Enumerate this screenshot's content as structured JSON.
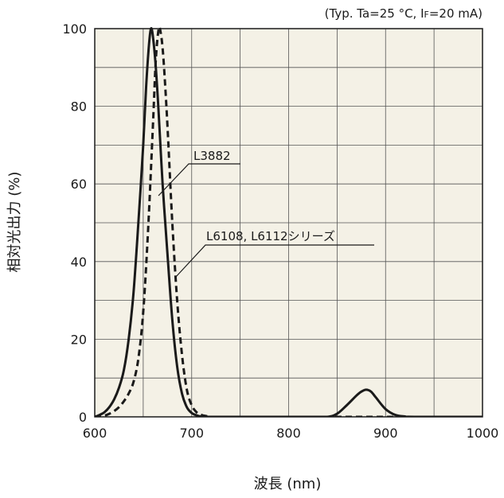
{
  "conditions": "(Typ. Ta=25 °C, IF=20 mA)",
  "conditions_parts": {
    "pre": "(Typ. Ta=25 °C, I",
    "sub": "F",
    "post": "=20 mA)"
  },
  "chart_data": {
    "type": "line",
    "xlabel": "波長 (nm)",
    "ylabel": "相対光出力 (%)",
    "xlim": [
      600,
      1000
    ],
    "ylim": [
      0,
      100
    ],
    "xticks": [
      600,
      700,
      800,
      900,
      1000
    ],
    "yticks": [
      0,
      20,
      40,
      60,
      80,
      100
    ],
    "grid": true,
    "plot_background": "#f4f1e6",
    "series": [
      {
        "name": "L3882",
        "style": "solid",
        "color": "#1a1a1a",
        "x": [
          600,
          605,
          610,
          615,
          620,
          625,
          630,
          635,
          640,
          645,
          650,
          653,
          656,
          658,
          660,
          663,
          666,
          670,
          675,
          680,
          685,
          690,
          695,
          700,
          705,
          710,
          720,
          740,
          780,
          820,
          840,
          850,
          860,
          870,
          875,
          880,
          885,
          890,
          900,
          910,
          920,
          930,
          1000
        ],
        "y": [
          0,
          0.5,
          1.2,
          2.5,
          4.5,
          7.5,
          12,
          20,
          32,
          50,
          70,
          85,
          96,
          100,
          98,
          90,
          78,
          60,
          42,
          25,
          13,
          6,
          2.5,
          1,
          0.4,
          0.1,
          0,
          0,
          0,
          0,
          0,
          0.8,
          3,
          5.5,
          6.5,
          7,
          6.5,
          5,
          2,
          0.5,
          0.1,
          0,
          0
        ]
      },
      {
        "name": "L6108, L6112シリーズ",
        "style": "dashed",
        "color": "#1a1a1a",
        "x": [
          600,
          605,
          610,
          615,
          620,
          625,
          630,
          635,
          640,
          645,
          650,
          655,
          660,
          663,
          666,
          668,
          670,
          672,
          675,
          680,
          685,
          690,
          695,
          700,
          705,
          710,
          715,
          720,
          740,
          800,
          900,
          1000
        ],
        "y": [
          0,
          0.1,
          0.3,
          0.8,
          1.5,
          2.5,
          4,
          6,
          9,
          15,
          27,
          48,
          75,
          92,
          100,
          99,
          95,
          88,
          75,
          50,
          30,
          16,
          7,
          3,
          1.2,
          0.5,
          0.2,
          0,
          0,
          0,
          0,
          0
        ]
      }
    ],
    "annotations": [
      {
        "text": "L3882",
        "series": 0
      },
      {
        "text": "L6108, L6112シリーズ",
        "series": 1
      }
    ]
  }
}
